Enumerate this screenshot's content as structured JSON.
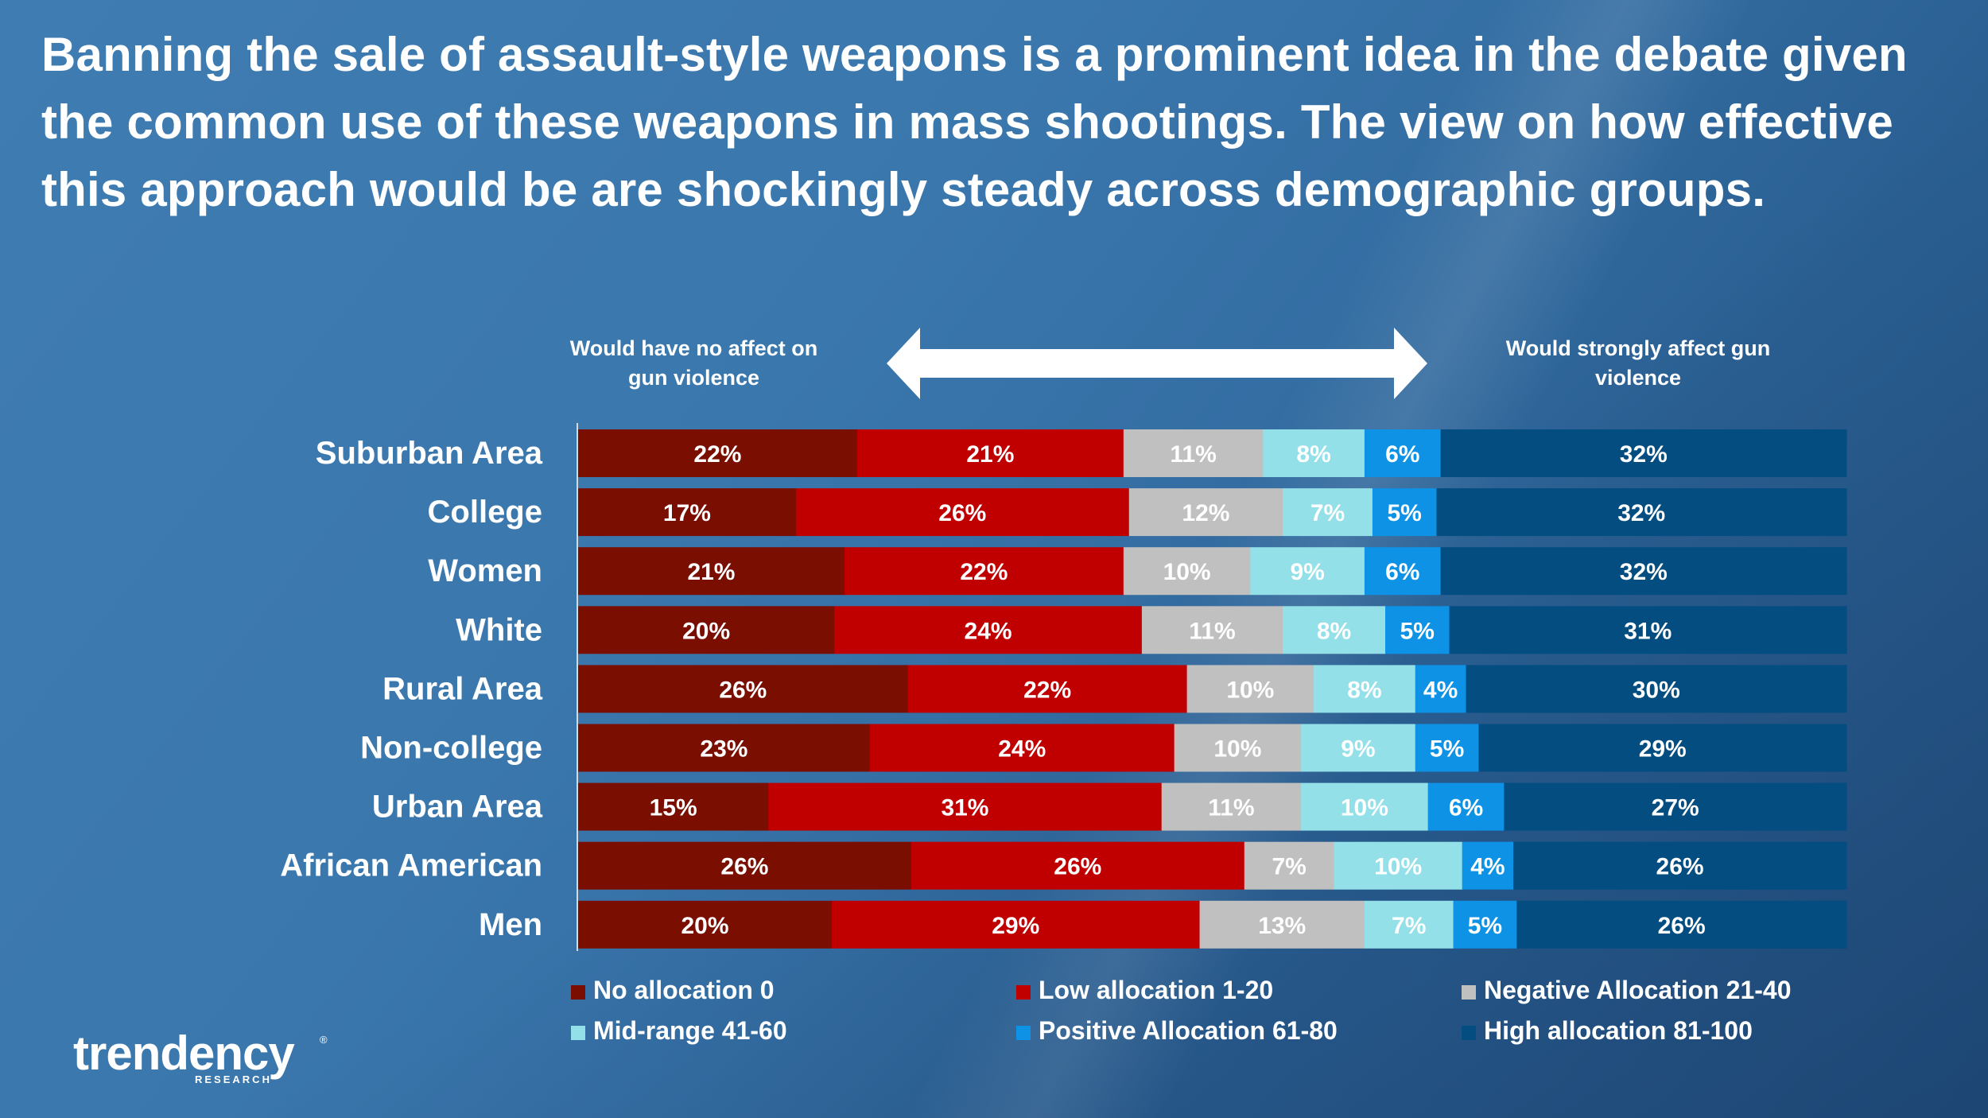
{
  "title": "Banning the sale of assault-style weapons is a prominent idea in the debate given the common use of these weapons in mass shootings. The view on how effective this approach would be are shockingly steady across demographic groups.",
  "annotations": {
    "left": "Would have no affect on gun violence",
    "right": "Would strongly affect gun violence"
  },
  "logo": {
    "name": "trendency",
    "sub": "RESEARCH",
    "mark": "®"
  },
  "colors": {
    "no": "#7a0e00",
    "low": "#c00000",
    "negative": "#c0c0c0",
    "mid": "#93e0e8",
    "positive": "#0e92e6",
    "high": "#034d80"
  },
  "chart_data": {
    "type": "bar",
    "orientation": "horizontal",
    "stacked": true,
    "normalized_100": true,
    "categories": [
      "Suburban Area",
      "College",
      "Women",
      "White",
      "Rural Area",
      "Non-college",
      "Urban Area",
      "African American",
      "Men"
    ],
    "series": [
      {
        "key": "no",
        "name": "No allocation 0",
        "values": [
          22,
          17,
          21,
          20,
          26,
          23,
          15,
          26,
          20
        ]
      },
      {
        "key": "low",
        "name": "Low allocation 1-20",
        "values": [
          21,
          26,
          22,
          24,
          22,
          24,
          31,
          26,
          29
        ]
      },
      {
        "key": "negative",
        "name": "Negative Allocation 21-40",
        "values": [
          11,
          12,
          10,
          11,
          10,
          10,
          11,
          7,
          13
        ]
      },
      {
        "key": "mid",
        "name": "Mid-range 41-60",
        "values": [
          8,
          7,
          9,
          8,
          8,
          9,
          10,
          10,
          7
        ]
      },
      {
        "key": "positive",
        "name": "Positive Allocation 61-80",
        "values": [
          6,
          5,
          6,
          5,
          4,
          5,
          6,
          4,
          5
        ]
      },
      {
        "key": "high",
        "name": "High allocation 81-100",
        "values": [
          32,
          32,
          32,
          31,
          30,
          29,
          27,
          26,
          26
        ]
      }
    ],
    "value_suffix": "%",
    "legend_position": "bottom"
  }
}
